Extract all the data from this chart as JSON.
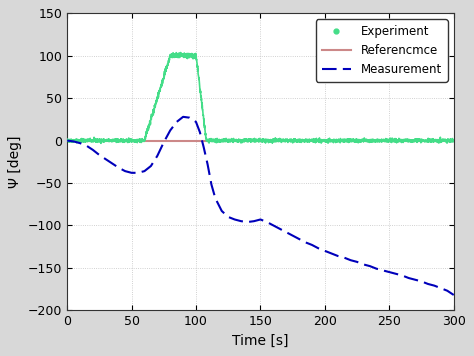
{
  "title": "",
  "xlabel": "Time [s]",
  "ylabel": "Ψ [deg]",
  "xlim": [
    0,
    300
  ],
  "ylim": [
    -200,
    150
  ],
  "yticks": [
    -200,
    -150,
    -100,
    -50,
    0,
    50,
    100,
    150
  ],
  "xticks": [
    0,
    50,
    100,
    150,
    200,
    250,
    300
  ],
  "bg_color": "#ffffff",
  "axes_bg_color": "#f5f5f5",
  "grid_color": "#bbbbbb",
  "reference_color": "#cc8888",
  "experiment_color": "#44dd88",
  "measurement_color": "#0000bb",
  "exp_rise_start": 60,
  "exp_rise_end": 80,
  "exp_flat_end": 100,
  "exp_fall_end": 108,
  "meas_x": [
    0,
    5,
    10,
    15,
    20,
    25,
    30,
    35,
    40,
    45,
    50,
    55,
    60,
    65,
    70,
    75,
    80,
    85,
    90,
    95,
    100,
    103,
    106,
    109,
    112,
    115,
    120,
    125,
    130,
    135,
    140,
    145,
    150,
    155,
    160,
    165,
    170,
    175,
    180,
    185,
    190,
    195,
    200,
    205,
    210,
    215,
    220,
    225,
    230,
    235,
    240,
    245,
    250,
    255,
    260,
    265,
    270,
    275,
    280,
    285,
    290,
    295,
    300
  ],
  "meas_y": [
    0,
    -1,
    -3,
    -6,
    -11,
    -17,
    -22,
    -27,
    -32,
    -36,
    -38,
    -38,
    -36,
    -30,
    -18,
    -2,
    12,
    22,
    28,
    27,
    22,
    10,
    -8,
    -28,
    -52,
    -68,
    -83,
    -90,
    -93,
    -95,
    -96,
    -95,
    -93,
    -96,
    -100,
    -104,
    -108,
    -112,
    -116,
    -120,
    -123,
    -127,
    -130,
    -133,
    -136,
    -138,
    -141,
    -143,
    -146,
    -148,
    -151,
    -153,
    -155,
    -157,
    -159,
    -162,
    -164,
    -166,
    -169,
    -171,
    -174,
    -177,
    -182
  ]
}
